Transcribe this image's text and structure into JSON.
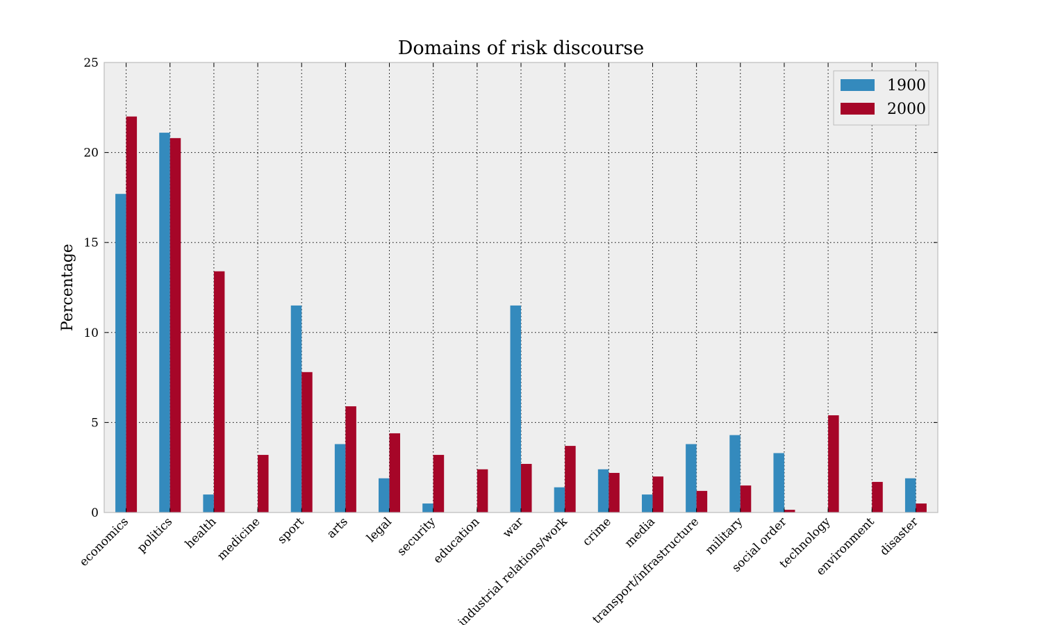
{
  "chart_data": {
    "type": "bar",
    "title": "Domains of risk discourse",
    "xlabel": "",
    "ylabel": "Percentage",
    "ylim": [
      0,
      25
    ],
    "yticks": [
      "0",
      "5",
      "10",
      "15",
      "20",
      "25"
    ],
    "grid": true,
    "legend_position": "top-right",
    "categories": [
      "economics",
      "politics",
      "health",
      "medicine",
      "sport",
      "arts",
      "legal",
      "security",
      "education",
      "war",
      "industrial relations/work",
      "crime",
      "media",
      "transport/infrastructure",
      "military",
      "social order",
      "technology",
      "environment",
      "disaster"
    ],
    "series": [
      {
        "name": "1900",
        "color": "#348abd",
        "values": [
          17.7,
          21.1,
          1.0,
          0.0,
          11.5,
          3.8,
          1.9,
          0.5,
          0.0,
          11.5,
          1.4,
          2.4,
          1.0,
          3.8,
          4.3,
          3.3,
          0.0,
          0.0,
          1.9
        ]
      },
      {
        "name": "2000",
        "color": "#a60628",
        "values": [
          22.0,
          20.8,
          13.4,
          3.2,
          7.8,
          5.9,
          4.4,
          3.2,
          2.4,
          2.7,
          3.7,
          2.2,
          2.0,
          1.2,
          1.5,
          0.15,
          5.4,
          1.7,
          0.5
        ]
      }
    ],
    "plot_background": "#eeeeee"
  }
}
